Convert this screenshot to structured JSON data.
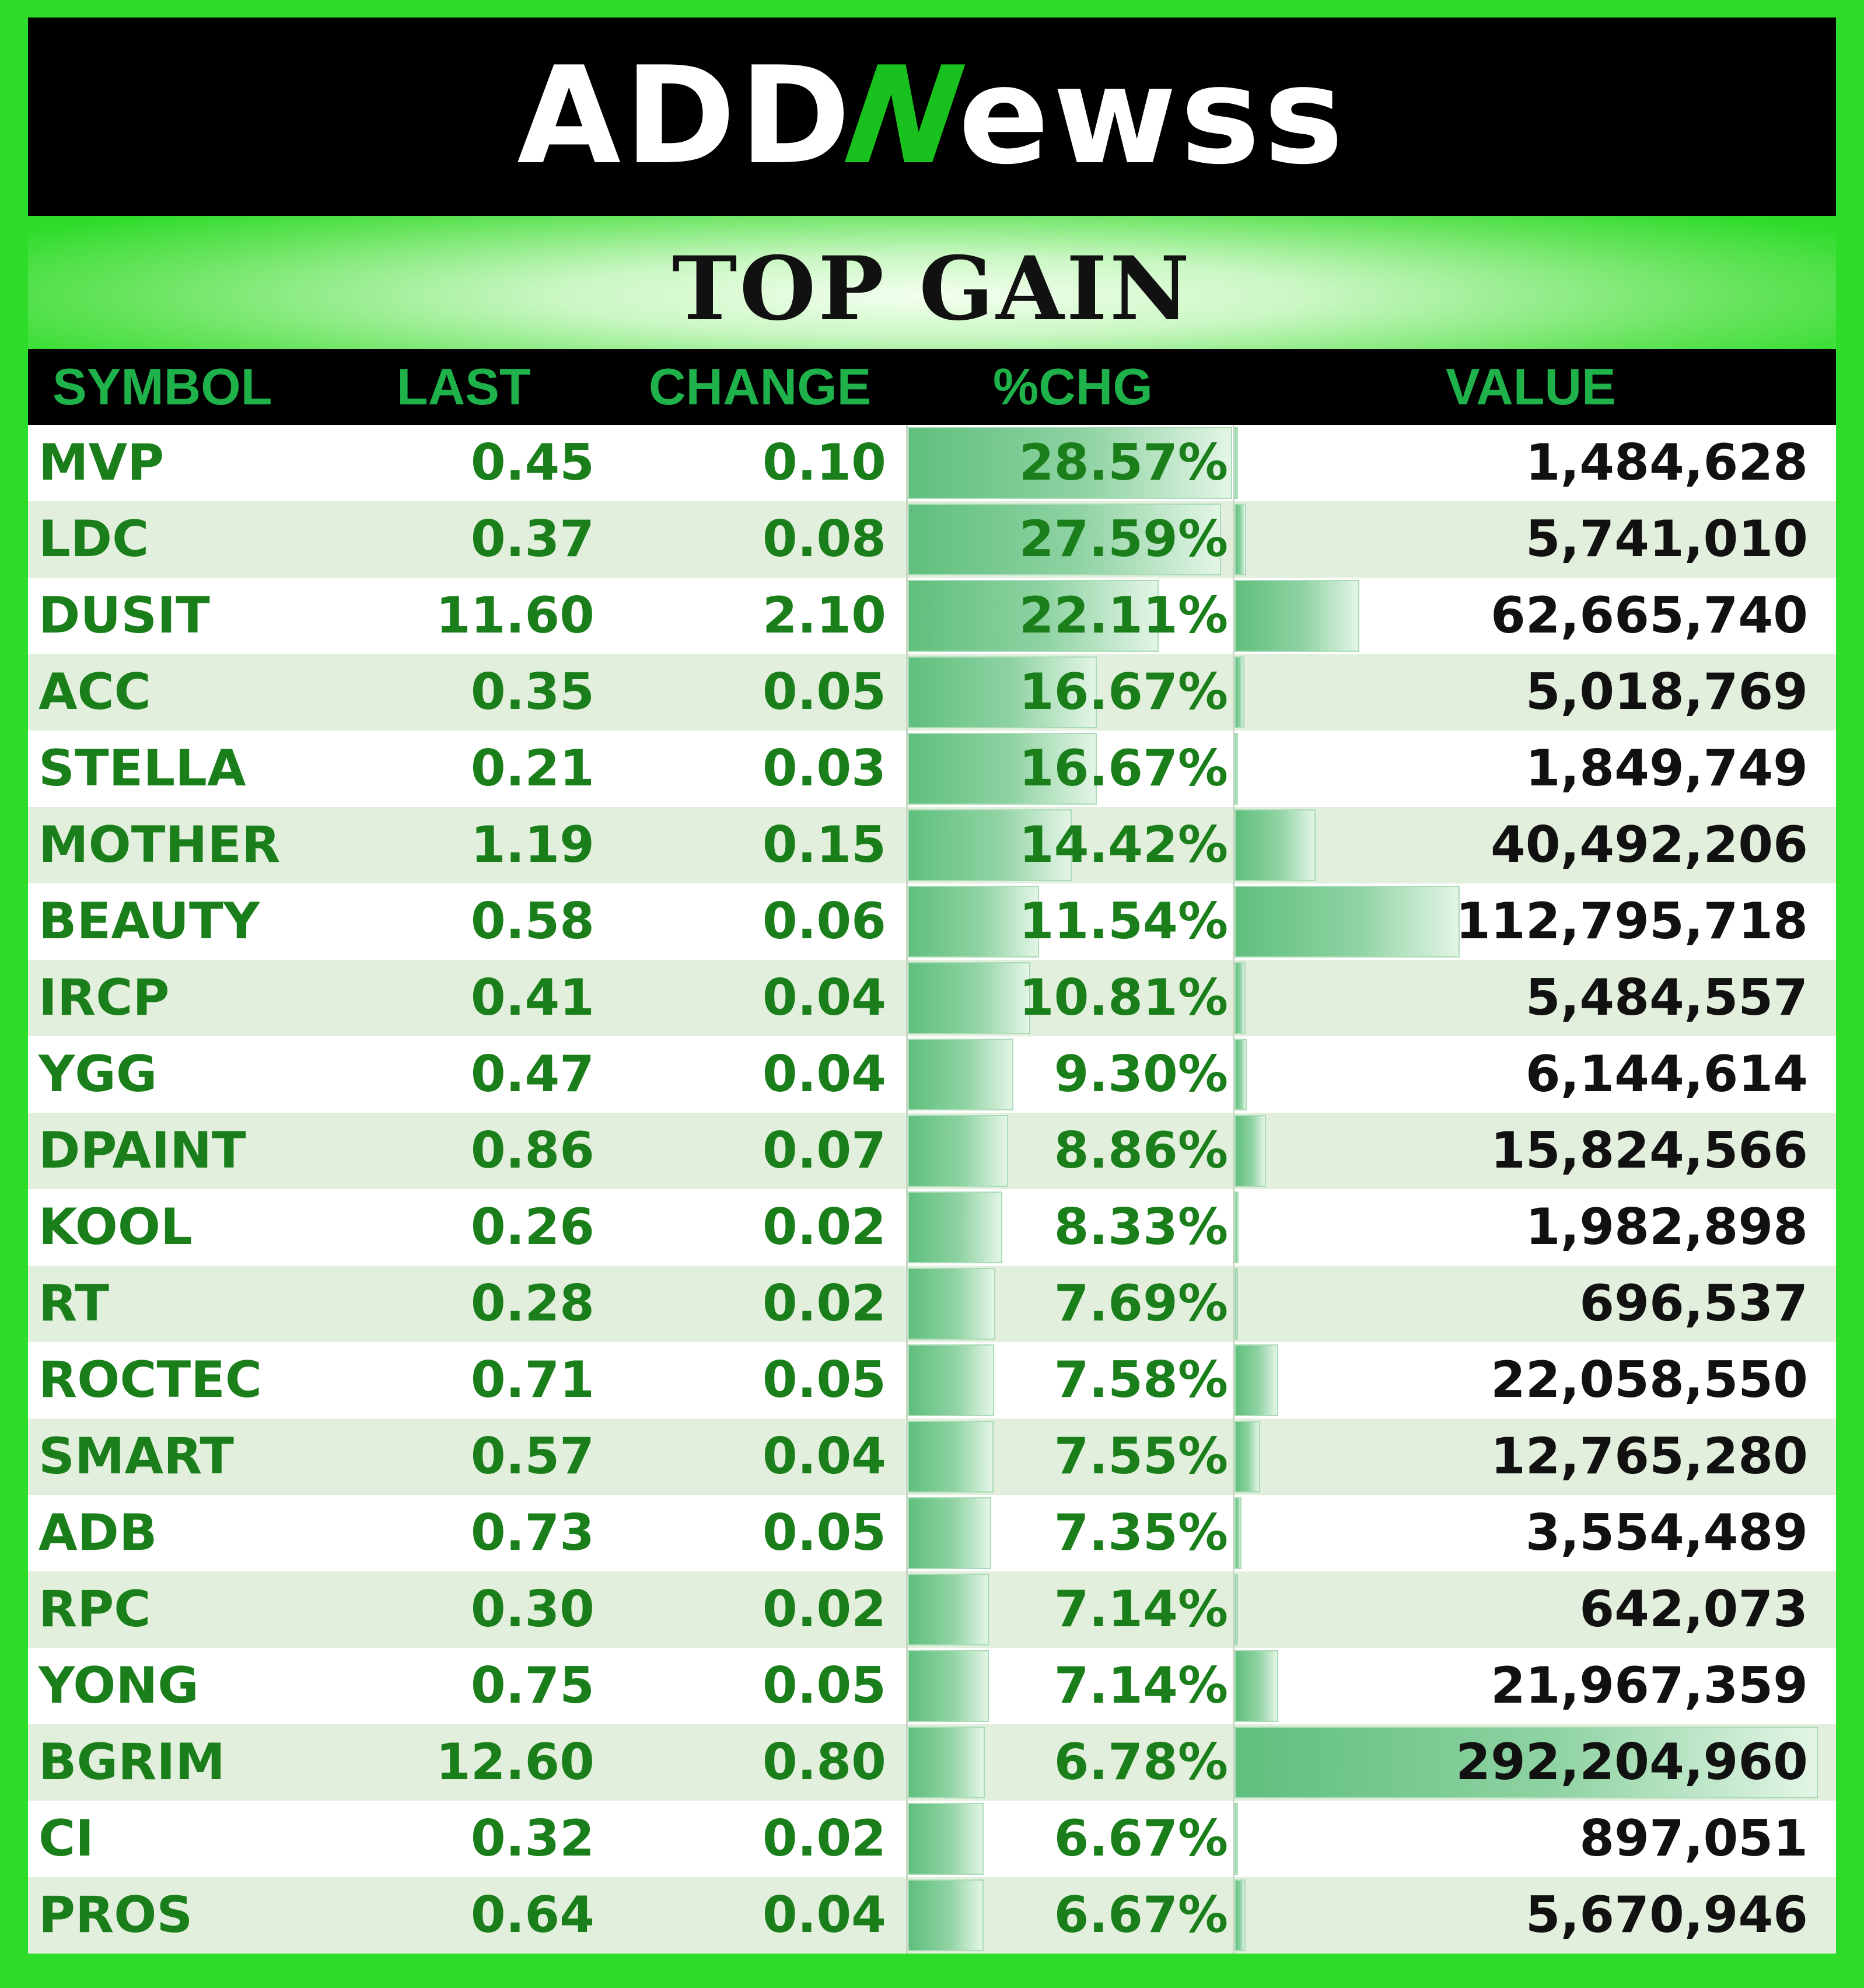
{
  "brand": {
    "logo_left": "ADD",
    "logo_n": "N",
    "logo_right": "ewss"
  },
  "title": "TOP GAIN",
  "columns": {
    "symbol": "SYMBOL",
    "last": "LAST",
    "change": "CHANGE",
    "pct": "%CHG",
    "value": "VALUE"
  },
  "colors": {
    "border": "#2edc2a",
    "header_text": "#1fb14a",
    "label_text": "#1a7f1a",
    "bar": "#5fbf7d"
  },
  "rows": [
    {
      "symbol": "MVP",
      "last": "0.45",
      "change": "0.10",
      "pct": "28.57%",
      "value": "1,484,628",
      "pct_num": 28.57,
      "value_num": 1484628
    },
    {
      "symbol": "LDC",
      "last": "0.37",
      "change": "0.08",
      "pct": "27.59%",
      "value": "5,741,010",
      "pct_num": 27.59,
      "value_num": 5741010
    },
    {
      "symbol": "DUSIT",
      "last": "11.60",
      "change": "2.10",
      "pct": "22.11%",
      "value": "62,665,740",
      "pct_num": 22.11,
      "value_num": 62665740
    },
    {
      "symbol": "ACC",
      "last": "0.35",
      "change": "0.05",
      "pct": "16.67%",
      "value": "5,018,769",
      "pct_num": 16.67,
      "value_num": 5018769
    },
    {
      "symbol": "STELLA",
      "last": "0.21",
      "change": "0.03",
      "pct": "16.67%",
      "value": "1,849,749",
      "pct_num": 16.67,
      "value_num": 1849749
    },
    {
      "symbol": "MOTHER",
      "last": "1.19",
      "change": "0.15",
      "pct": "14.42%",
      "value": "40,492,206",
      "pct_num": 14.42,
      "value_num": 40492206
    },
    {
      "symbol": "BEAUTY",
      "last": "0.58",
      "change": "0.06",
      "pct": "11.54%",
      "value": "112,795,718",
      "pct_num": 11.54,
      "value_num": 112795718
    },
    {
      "symbol": "IRCP",
      "last": "0.41",
      "change": "0.04",
      "pct": "10.81%",
      "value": "5,484,557",
      "pct_num": 10.81,
      "value_num": 5484557
    },
    {
      "symbol": "YGG",
      "last": "0.47",
      "change": "0.04",
      "pct": "9.30%",
      "value": "6,144,614",
      "pct_num": 9.3,
      "value_num": 6144614
    },
    {
      "symbol": "DPAINT",
      "last": "0.86",
      "change": "0.07",
      "pct": "8.86%",
      "value": "15,824,566",
      "pct_num": 8.86,
      "value_num": 15824566
    },
    {
      "symbol": "KOOL",
      "last": "0.26",
      "change": "0.02",
      "pct": "8.33%",
      "value": "1,982,898",
      "pct_num": 8.33,
      "value_num": 1982898
    },
    {
      "symbol": "RT",
      "last": "0.28",
      "change": "0.02",
      "pct": "7.69%",
      "value": "696,537",
      "pct_num": 7.69,
      "value_num": 696537
    },
    {
      "symbol": "ROCTEC",
      "last": "0.71",
      "change": "0.05",
      "pct": "7.58%",
      "value": "22,058,550",
      "pct_num": 7.58,
      "value_num": 22058550
    },
    {
      "symbol": "SMART",
      "last": "0.57",
      "change": "0.04",
      "pct": "7.55%",
      "value": "12,765,280",
      "pct_num": 7.55,
      "value_num": 12765280
    },
    {
      "symbol": "ADB",
      "last": "0.73",
      "change": "0.05",
      "pct": "7.35%",
      "value": "3,554,489",
      "pct_num": 7.35,
      "value_num": 3554489
    },
    {
      "symbol": "RPC",
      "last": "0.30",
      "change": "0.02",
      "pct": "7.14%",
      "value": "642,073",
      "pct_num": 7.14,
      "value_num": 642073
    },
    {
      "symbol": "YONG",
      "last": "0.75",
      "change": "0.05",
      "pct": "7.14%",
      "value": "21,967,359",
      "pct_num": 7.14,
      "value_num": 21967359
    },
    {
      "symbol": "BGRIM",
      "last": "12.60",
      "change": "0.80",
      "pct": "6.78%",
      "value": "292,204,960",
      "pct_num": 6.78,
      "value_num": 292204960
    },
    {
      "symbol": "CI",
      "last": "0.32",
      "change": "0.02",
      "pct": "6.67%",
      "value": "897,051",
      "pct_num": 6.67,
      "value_num": 897051
    },
    {
      "symbol": "PROS",
      "last": "0.64",
      "change": "0.04",
      "pct": "6.67%",
      "value": "5,670,946",
      "pct_num": 6.67,
      "value_num": 5670946
    }
  ]
}
